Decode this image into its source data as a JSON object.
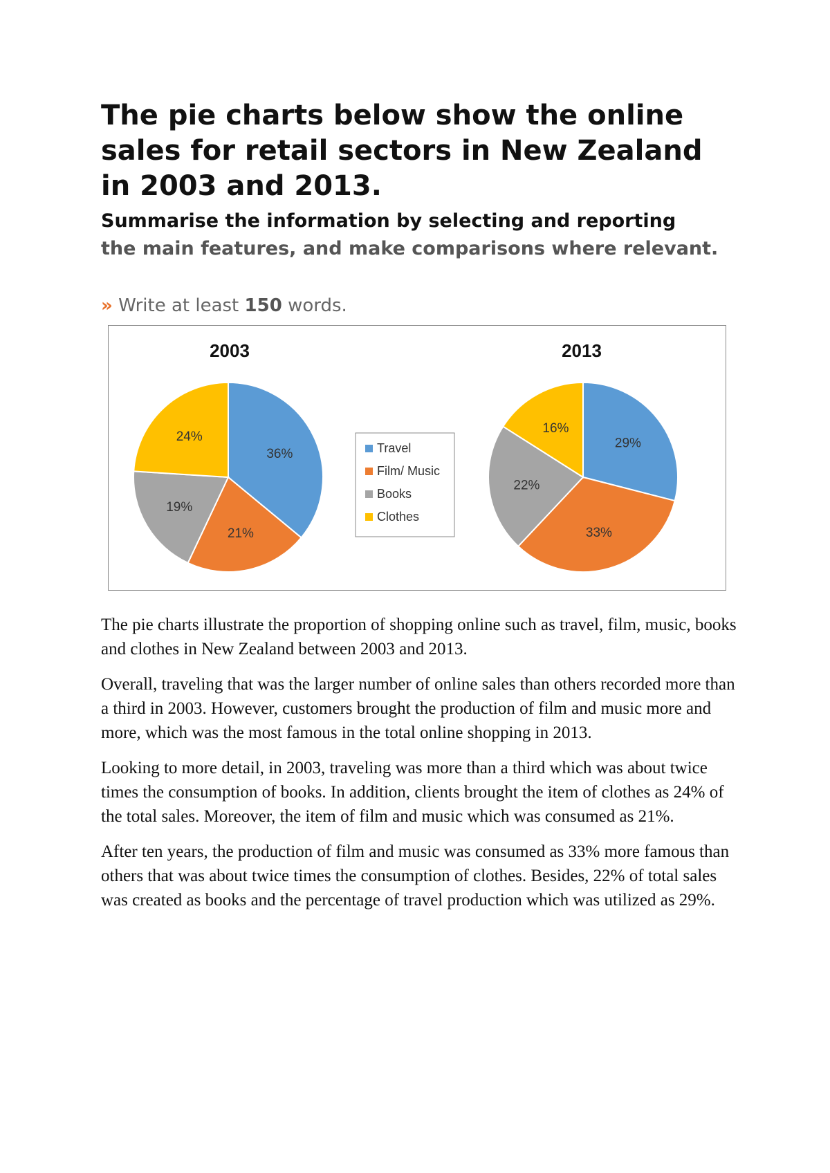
{
  "task": {
    "title": "The pie charts below show the online sales for retail sectors in New Zealand in 2003 and 2013.",
    "instruction_line1": "Summarise the information by selecting and reporting",
    "instruction_rest": "the main features, and make comparisons where relevant.",
    "word_prefix_symbol": "»",
    "word_prefix": "Write at least",
    "word_count": "150",
    "word_suffix": "words."
  },
  "chart_data": {
    "type": "pie",
    "legend_position": "center",
    "legend": [
      "Travel",
      "Film/ Music",
      "Books",
      "Clothes"
    ],
    "colors": {
      "Travel": "#5b9bd5",
      "Film/ Music": "#ed7d31",
      "Books": "#a5a5a5",
      "Clothes": "#ffc000"
    },
    "charts": [
      {
        "title": "2003",
        "slices": [
          {
            "label": "Travel",
            "value": 36,
            "text": "36%"
          },
          {
            "label": "Film/ Music",
            "value": 21,
            "text": "21%"
          },
          {
            "label": "Books",
            "value": 19,
            "text": "19%"
          },
          {
            "label": "Clothes",
            "value": 24,
            "text": "24%"
          }
        ]
      },
      {
        "title": "2013",
        "slices": [
          {
            "label": "Travel",
            "value": 29,
            "text": "29%"
          },
          {
            "label": "Film/ Music",
            "value": 33,
            "text": "33%"
          },
          {
            "label": "Books",
            "value": 22,
            "text": "22%"
          },
          {
            "label": "Clothes",
            "value": 16,
            "text": "16%"
          }
        ]
      }
    ]
  },
  "essay": {
    "paragraphs": [
      "The pie charts illustrate the proportion of shopping online such as travel, film, music, books and clothes in New Zealand between 2003 and 2013.",
      "Overall, traveling that was the larger number of online sales than others recorded more than a third in 2003. However, customers brought the production of film and music more and more, which was the most famous in the total online shopping in 2013.",
      "Looking to more detail, in 2003, traveling was more than a third which was about twice times the consumption of books. In addition, clients brought the item of clothes as 24% of the total sales. Moreover, the item of film and music which was consumed as 21%.",
      "After ten years, the production of film and music was consumed as 33% more famous than others that was about twice times the consumption of clothes. Besides, 22% of total sales was created as books and the percentage of travel production which was utilized as 29%."
    ]
  }
}
